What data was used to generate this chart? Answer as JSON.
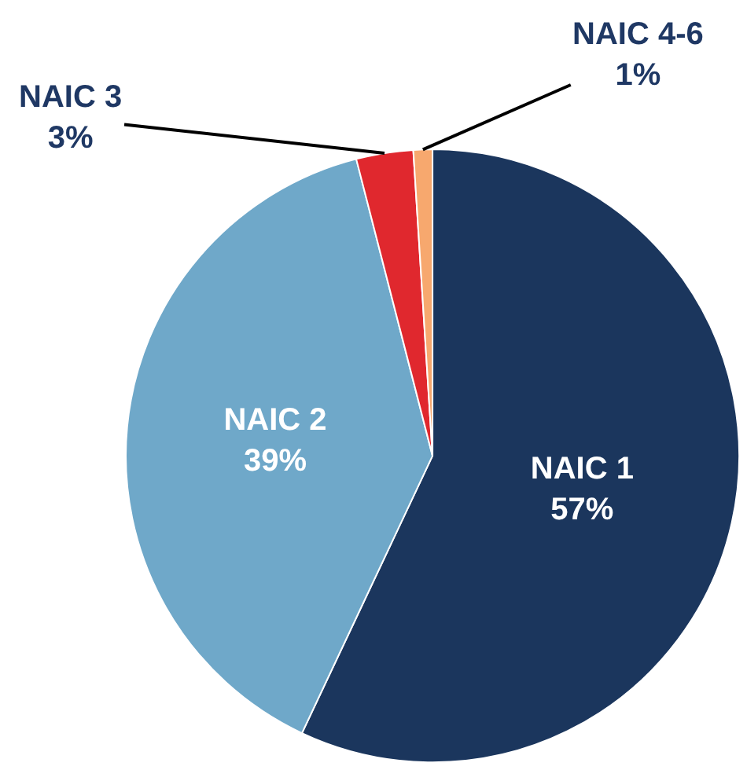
{
  "chart_data": {
    "type": "pie",
    "categories": [
      "NAIC 1",
      "NAIC 2",
      "NAIC 3",
      "NAIC 4-6"
    ],
    "values": [
      57,
      39,
      3,
      1
    ],
    "value_labels": [
      "57%",
      "39%",
      "3%",
      "1%"
    ],
    "colors": [
      "#1b365d",
      "#6fa8c9",
      "#e0282e",
      "#f7a86e"
    ]
  }
}
